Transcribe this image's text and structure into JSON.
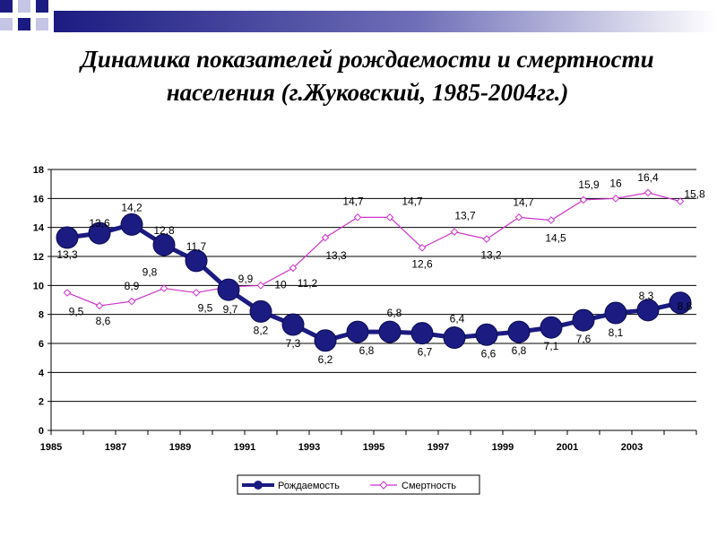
{
  "title": {
    "line1": "Динамика показателей  рождаемости и смертности",
    "line2": "населения (г.Жуковский, 1985-2004гг.)"
  },
  "colors": {
    "accent": "#1b1b82",
    "births": "#1b1b82",
    "deaths": "#cc33cc",
    "grid": "#000000"
  },
  "chart_data": {
    "type": "line",
    "title": "Динамика показателей  рождаемости и смертности населения (г.Жуковский, 1985-2004гг.)",
    "x": [
      1985,
      1986,
      1987,
      1988,
      1989,
      1990,
      1991,
      1992,
      1993,
      1994,
      1995,
      1996,
      1997,
      1998,
      1999,
      2000,
      2001,
      2002,
      2003,
      2004
    ],
    "xticks": [
      "1985",
      "1987",
      "1989",
      "1991",
      "1993",
      "1995",
      "1997",
      "1999",
      "2001",
      "2003"
    ],
    "yticks": [
      "0",
      "2",
      "4",
      "6",
      "8",
      "10",
      "12",
      "14",
      "16",
      "18"
    ],
    "ylim": [
      0,
      18
    ],
    "grid": true,
    "legend": "bottom",
    "series": [
      {
        "name": "Рождаемость",
        "values": [
          13.3,
          13.6,
          14.2,
          12.8,
          11.7,
          9.7,
          8.2,
          7.3,
          6.2,
          6.8,
          6.8,
          6.7,
          6.4,
          6.6,
          6.8,
          7.1,
          7.6,
          8.1,
          8.3,
          8.8
        ],
        "labels": [
          "13,3",
          "13,6",
          "14,2",
          "12,8",
          "11,7",
          "9,7",
          "8,2",
          "7,3",
          "6,2",
          "6,8",
          "6,8",
          "6,7",
          "6,4",
          "6,6",
          "6,8",
          "7,1",
          "7,6",
          "8,1",
          "8,3",
          "8,8"
        ]
      },
      {
        "name": "Смертность",
        "values": [
          9.5,
          8.6,
          8.9,
          9.8,
          9.5,
          9.9,
          10,
          11.2,
          13.3,
          14.7,
          14.7,
          12.6,
          13.7,
          13.2,
          14.7,
          14.5,
          15.9,
          16,
          16.4,
          15.8
        ],
        "labels": [
          "9,5",
          "8,6",
          "8,9",
          "9,8",
          "9,5",
          "9,9",
          "10",
          "11,2",
          "13,3",
          "14,7",
          "14,7",
          "12,6",
          "13,7",
          "13,2",
          "14,7",
          "14,5",
          "15,9",
          "16",
          "16,4",
          "15,8"
        ]
      }
    ]
  }
}
